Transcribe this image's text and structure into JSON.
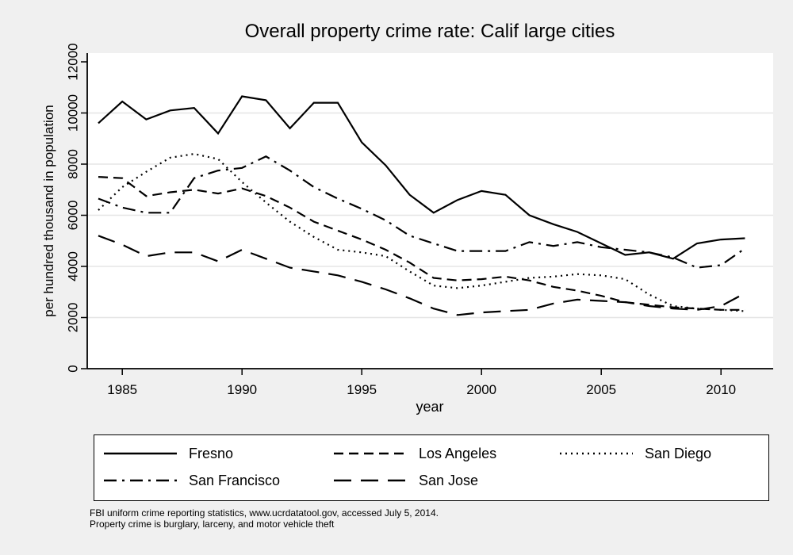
{
  "colors": {
    "background": "#f0f0f0",
    "plot_background": "#ffffff",
    "gridline": "#e5e5e5",
    "axis": "#000000",
    "line": "#000000"
  },
  "chart_data": {
    "type": "line",
    "title": "Overall property crime rate: Calif large cities",
    "xlabel": "year",
    "ylabel": "per hundred thousand in population",
    "x": [
      1984,
      1985,
      1986,
      1987,
      1988,
      1989,
      1990,
      1991,
      1992,
      1993,
      1994,
      1995,
      1996,
      1997,
      1998,
      1999,
      2000,
      2001,
      2002,
      2003,
      2004,
      2005,
      2006,
      2007,
      2008,
      2009,
      2010,
      2011
    ],
    "xticks": [
      1985,
      1990,
      1995,
      2000,
      2005,
      2010
    ],
    "yticks": [
      0,
      2000,
      4000,
      6000,
      8000,
      10000,
      12000
    ],
    "ylim": [
      0,
      12000
    ],
    "grid": true,
    "legend_position": "bottom",
    "series": [
      {
        "name": "Fresno",
        "line_style": "solid",
        "values": [
          9600,
          10450,
          9750,
          10100,
          10200,
          9200,
          10650,
          10500,
          9400,
          10400,
          10400,
          8850,
          7950,
          6800,
          6100,
          6600,
          6950,
          6800,
          6000,
          5650,
          5350,
          4900,
          4450,
          4550,
          4300,
          4900,
          5050,
          5100
        ]
      },
      {
        "name": "Los Angeles",
        "line_style": "dash",
        "values": [
          7500,
          7450,
          6750,
          6900,
          7000,
          6850,
          7050,
          6750,
          6300,
          5750,
          5400,
          5050,
          4650,
          4150,
          3550,
          3450,
          3500,
          3600,
          3450,
          3200,
          3050,
          2850,
          2600,
          2500,
          2400,
          2350,
          2300,
          2300
        ]
      },
      {
        "name": "San Diego",
        "line_style": "dot",
        "values": [
          6200,
          7100,
          7700,
          8250,
          8400,
          8200,
          7300,
          6500,
          5750,
          5150,
          4650,
          4550,
          4400,
          3800,
          3250,
          3150,
          3250,
          3400,
          3550,
          3600,
          3700,
          3650,
          3500,
          2900,
          2450,
          2350,
          2300,
          2250
        ]
      },
      {
        "name": "San Francisco",
        "line_style": "dash-dot",
        "values": [
          6650,
          6300,
          6100,
          6100,
          7450,
          7750,
          7850,
          8300,
          7750,
          7100,
          6650,
          6250,
          5800,
          5200,
          4900,
          4600,
          4600,
          4600,
          4950,
          4800,
          4950,
          4750,
          4650,
          4550,
          4350,
          3950,
          4050,
          4700
        ]
      },
      {
        "name": "San Jose",
        "line_style": "long-dash",
        "values": [
          5200,
          4850,
          4400,
          4550,
          4550,
          4200,
          4650,
          4300,
          3950,
          3800,
          3650,
          3400,
          3100,
          2750,
          2350,
          2100,
          2200,
          2250,
          2300,
          2550,
          2700,
          2650,
          2600,
          2450,
          2350,
          2300,
          2450,
          2950
        ]
      }
    ]
  },
  "legend": {
    "entries": [
      "Fresno",
      "Los Angeles",
      "San Diego",
      "San Francisco",
      "San Jose"
    ]
  },
  "footnotes": [
    "FBI uniform crime reporting statistics, www.ucrdatatool.gov, accessed July 5, 2014.",
    "Property crime is burglary, larceny, and motor vehicle theft"
  ]
}
